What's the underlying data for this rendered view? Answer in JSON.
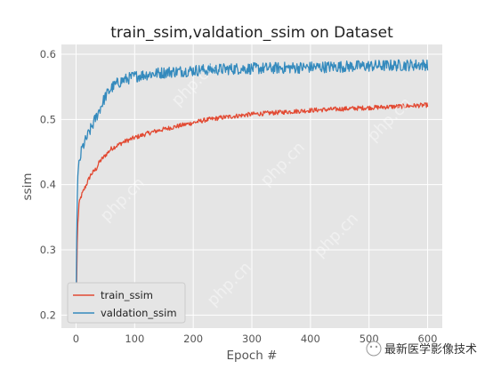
{
  "chart_data": {
    "type": "line",
    "title": "train_ssim,valdation_ssim on Dataset",
    "xlabel": "Epoch #",
    "ylabel": "ssim",
    "xlim": [
      -25,
      625
    ],
    "ylim": [
      0.18,
      0.615
    ],
    "xticks": [
      0,
      100,
      200,
      300,
      400,
      500,
      600
    ],
    "yticks": [
      0.2,
      0.3,
      0.4,
      0.5,
      0.6
    ],
    "xtick_labels": [
      "0",
      "100",
      "200",
      "300",
      "400",
      "500",
      "600"
    ],
    "ytick_labels": [
      "0.2",
      "0.3",
      "0.4",
      "0.5",
      "0.6"
    ],
    "grid": true,
    "style": "ggplot",
    "legend_position": "lower-left",
    "series": [
      {
        "name": "train_ssim",
        "color": "#E24A33",
        "x": [
          0,
          1,
          2,
          3,
          5,
          8,
          10,
          15,
          20,
          25,
          30,
          35,
          40,
          50,
          60,
          70,
          80,
          100,
          120,
          140,
          160,
          180,
          200,
          220,
          250,
          280,
          300,
          350,
          400,
          450,
          500,
          550,
          600
        ],
        "y": [
          0.19,
          0.25,
          0.31,
          0.34,
          0.37,
          0.38,
          0.385,
          0.395,
          0.405,
          0.415,
          0.42,
          0.425,
          0.435,
          0.445,
          0.455,
          0.46,
          0.465,
          0.472,
          0.478,
          0.483,
          0.487,
          0.491,
          0.495,
          0.499,
          0.503,
          0.506,
          0.508,
          0.511,
          0.514,
          0.516,
          0.518,
          0.52,
          0.522
        ]
      },
      {
        "name": "valdation_ssim",
        "color": "#348ABD",
        "x": [
          0,
          1,
          2,
          3,
          5,
          8,
          10,
          15,
          20,
          25,
          30,
          35,
          40,
          45,
          50,
          60,
          70,
          80,
          100,
          120,
          140,
          160,
          180,
          200,
          220,
          250,
          280,
          300,
          350,
          400,
          450,
          500,
          550,
          600
        ],
        "y": [
          0.2,
          0.32,
          0.38,
          0.41,
          0.43,
          0.445,
          0.455,
          0.465,
          0.475,
          0.485,
          0.495,
          0.505,
          0.515,
          0.525,
          0.535,
          0.548,
          0.555,
          0.56,
          0.566,
          0.569,
          0.571,
          0.573,
          0.574,
          0.575,
          0.576,
          0.577,
          0.578,
          0.578,
          0.579,
          0.58,
          0.581,
          0.582,
          0.583,
          0.584
        ]
      }
    ]
  },
  "watermark": {
    "brand": "最新医学影像技术",
    "diagonal": "php.cn"
  }
}
